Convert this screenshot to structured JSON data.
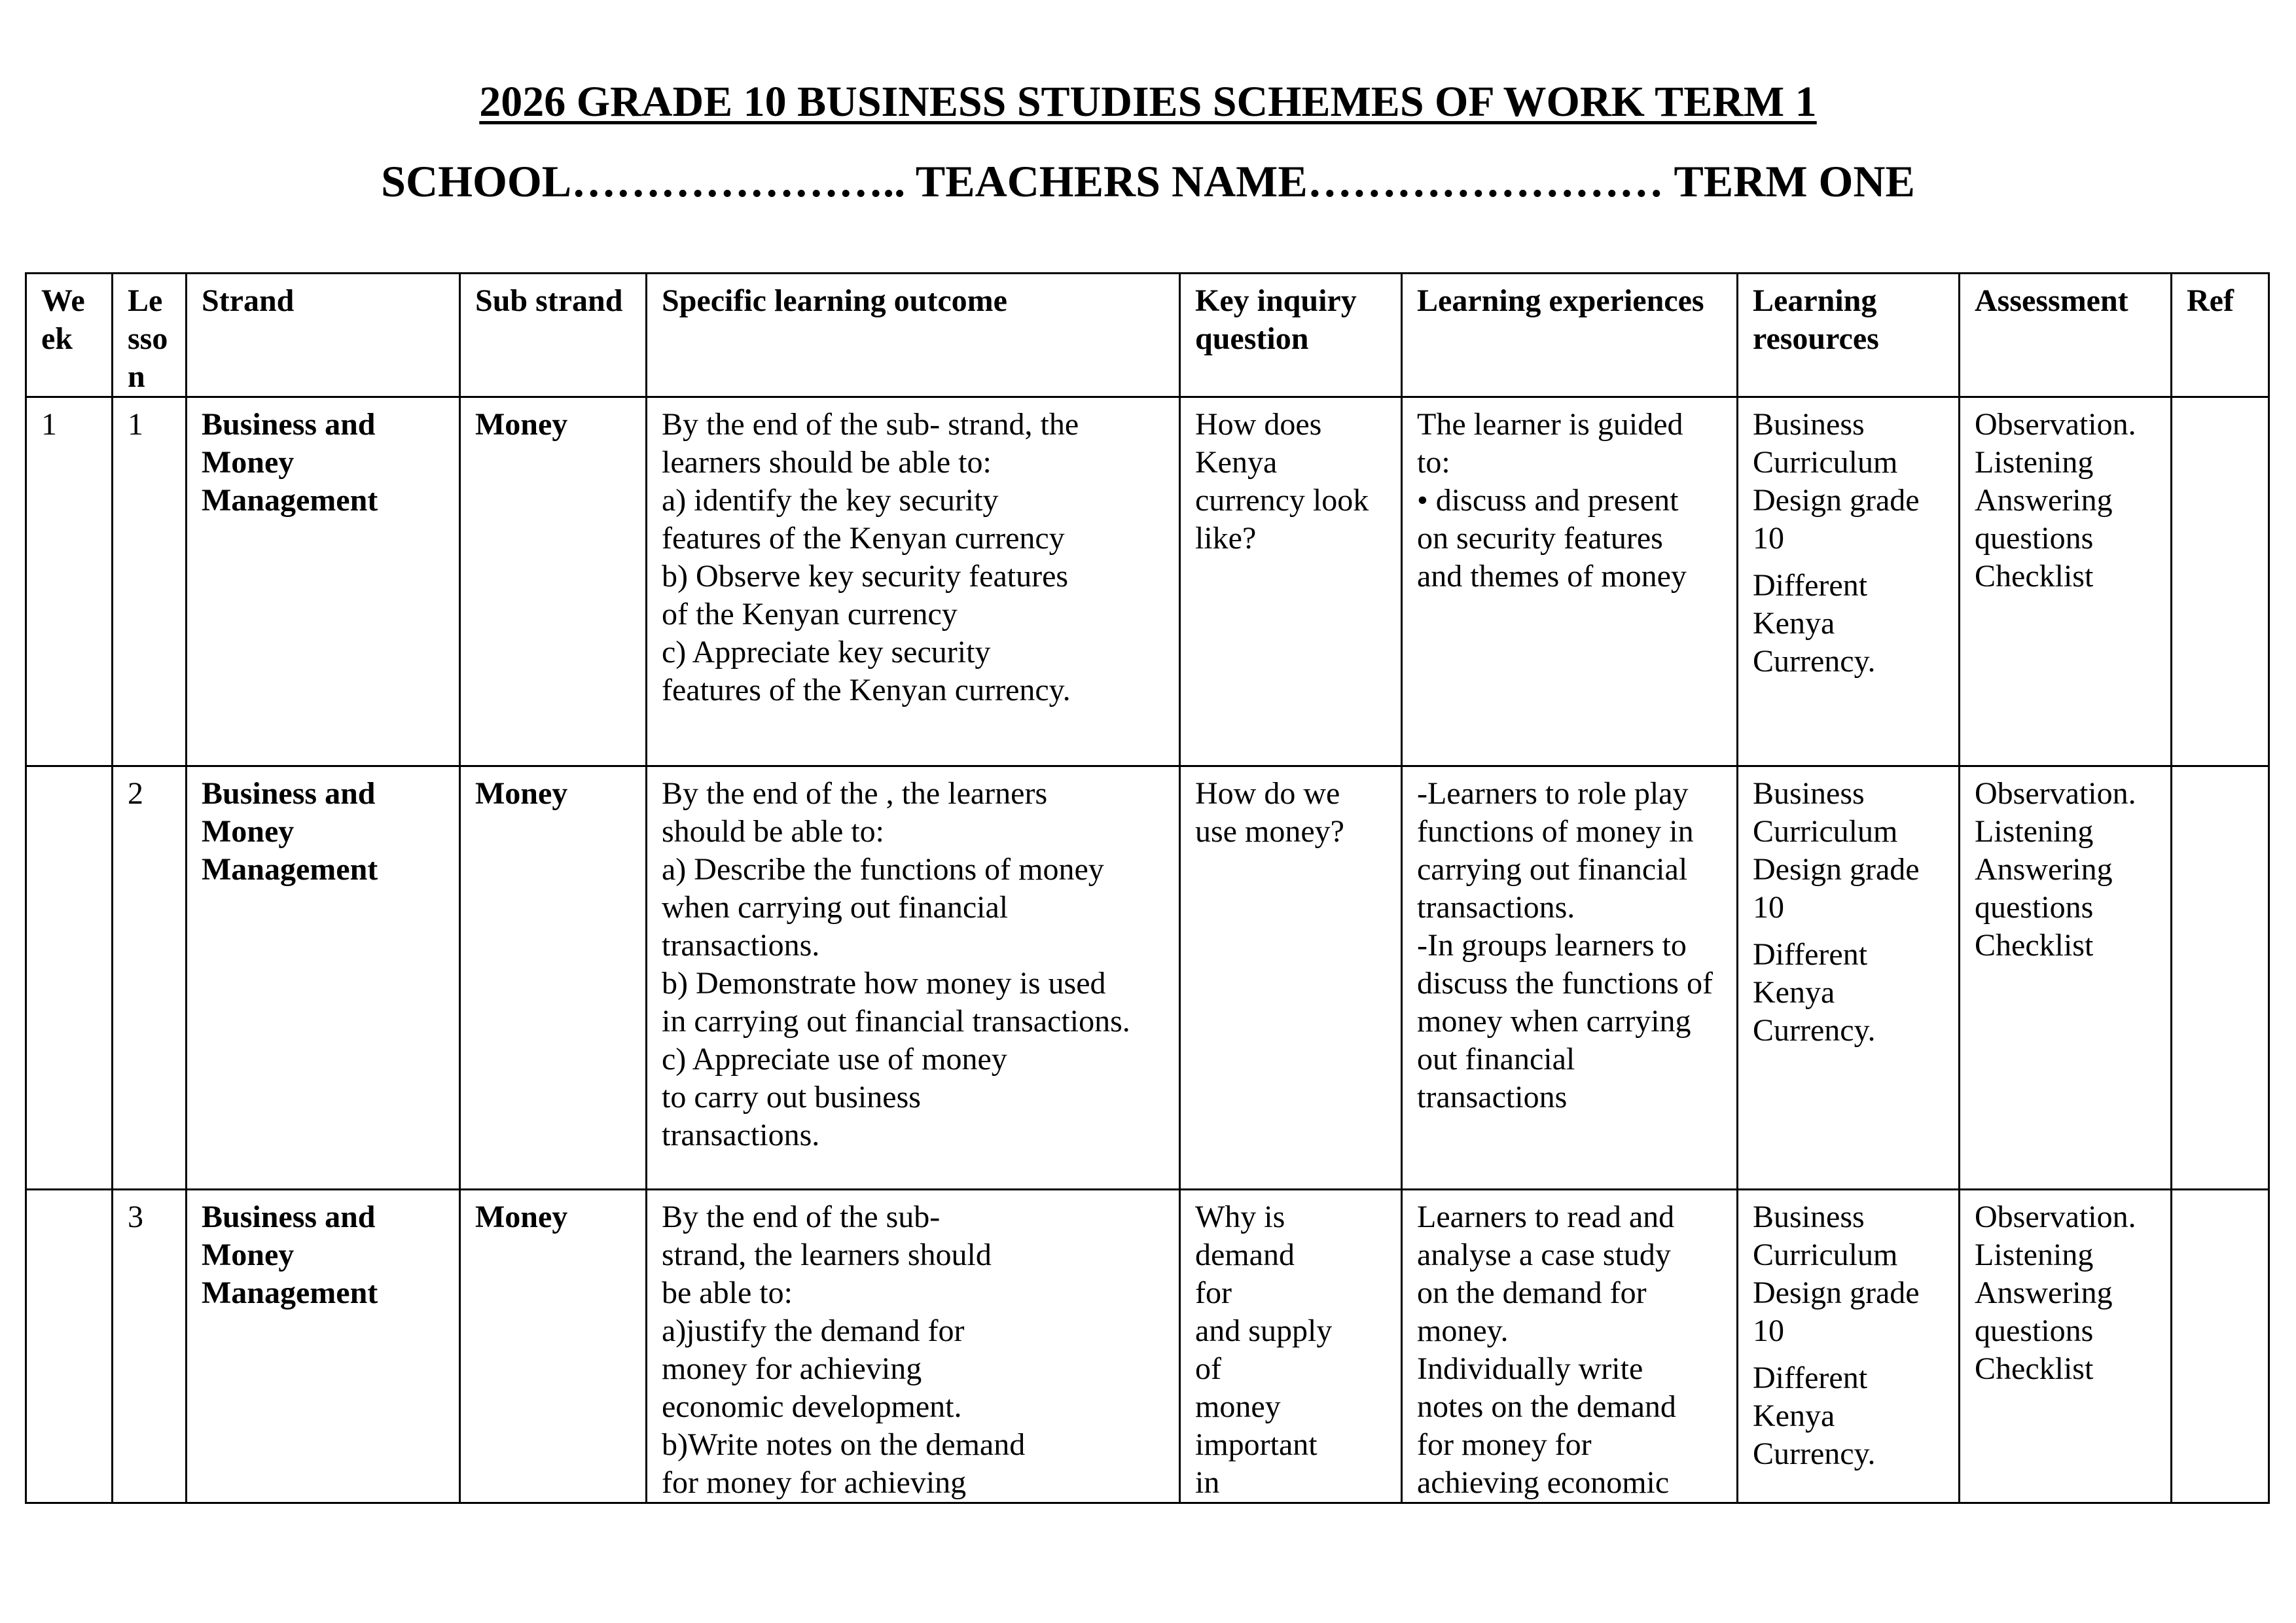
{
  "document": {
    "title": "2026 GRADE 10 BUSINESS STUDIES SCHEMES OF WORK TERM 1",
    "subtitle": "SCHOOL………………….. TEACHERS NAME…………………… TERM  ONE"
  },
  "table": {
    "headers": [
      "We\nek",
      "Le\nsso\nn",
      "Strand",
      "Sub strand",
      "Specific learning outcome",
      "Key inquiry\nquestion",
      "Learning experiences",
      "Learning\nresources",
      "Assessment",
      "Ref"
    ],
    "rows": [
      {
        "week": "1",
        "lesson": "1",
        "strand": "Business and\nMoney\nManagement",
        "sub_strand": "Money",
        "outcome": "By the end of the sub- strand, the\nlearners should be able to:\n a) identify the key security\n features of the Kenyan  currency\n b) Observe  key security  features\n of the Kenyan  currency\n c) Appreciate key security\n features of the Kenyan currency.",
        "inquiry": "How does\nKenya\ncurrency look\nlike?",
        "experiences": "The learner is guided\nto:\n• discuss and present\non security  features\nand themes of money",
        "resources": [
          "Business\nCurriculum\nDesign grade\n10",
          "Different\nKenya\nCurrency."
        ],
        "assessment": "Observation.\nListening\nAnswering\nquestions\nChecklist",
        "ref": ""
      },
      {
        "week": "",
        "lesson": "2",
        "strand": "Business and\nMoney\nManagement",
        "sub_strand": "Money",
        "outcome": "By the end of the , the learners\nshould be able to:\na)      Describe the functions of  money\nwhen carrying out  financial\ntransactions.\nb)      Demonstrate how money  is used\nin carrying out financial transactions.\nc)      Appreciate use of money\nto carry out business\ntransactions.",
        "inquiry": "How do we\nuse money?",
        "experiences": "-Learners to role play\nfunctions of money in\ncarrying out financial\ntransactions.\n-In groups learners to\ndiscuss the functions of\nmoney when carrying\nout  financial\ntransactions",
        "resources": [
          "Business\nCurriculum\nDesign grade\n10",
          "Different\nKenya\nCurrency."
        ],
        "assessment": "Observation.\nListening\nAnswering\nquestions\nChecklist",
        "ref": ""
      },
      {
        "week": "",
        "lesson": "3",
        "strand": "Business  and\nMoney\nManagement",
        "sub_strand": "Money",
        "outcome": "By the end of the sub-\nstrand, the learners should\nbe able to:\na)justify the demand for\nmoney for achieving\neconomic development.\nb)Write notes on the demand\nfor money for achieving",
        "inquiry": "Why is\ndemand\nfor\nand supply\nof\nmoney\nimportant\nin",
        "experiences": " Learners to read and\nanalyse a case study\non  the demand for\nmoney.\nIndividually write\nnotes on the demand\nfor money for\nachieving economic",
        "resources": [
          "Business\nCurriculum\nDesign grade\n10",
          "Different\nKenya\nCurrency."
        ],
        "assessment": "Observation.\nListening\nAnswering\nquestions\nChecklist",
        "ref": ""
      }
    ]
  }
}
